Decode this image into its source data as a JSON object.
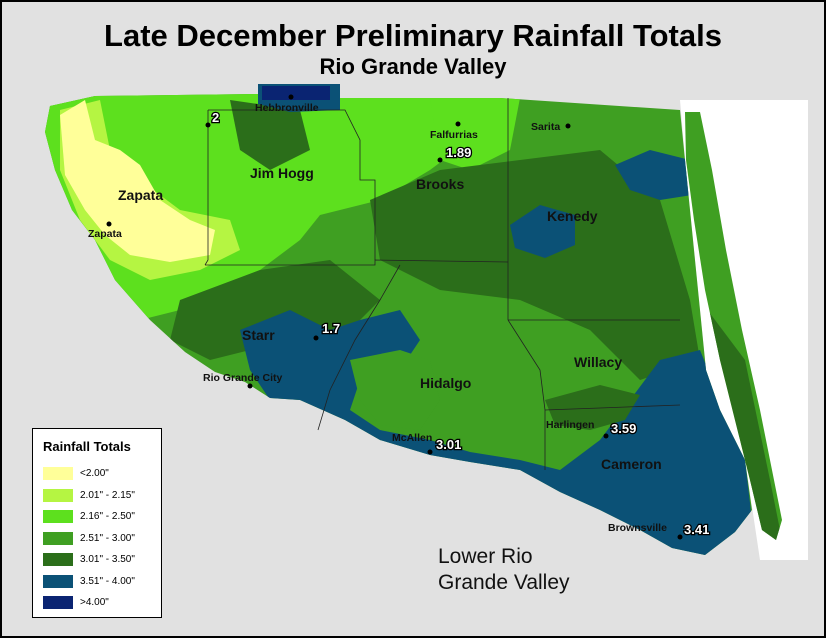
{
  "title": "Late December Preliminary Rainfall Totals",
  "subtitle": "Rio Grande Valley",
  "region_label": [
    "Lower Rio",
    "Grande Valley"
  ],
  "colors": {
    "lt2_00": "#ffff99",
    "r2_01_2_15": "#b5f542",
    "r2_16_2_50": "#5de01e",
    "r2_51_3_00": "#3f9f22",
    "r3_01_3_50": "#2b6e1a",
    "r3_51_4_00": "#0b5176",
    "gt4_00": "#0a2472",
    "background": "#e1e1e1",
    "gulf": "#ffffff"
  },
  "legend": {
    "title": "Rainfall Totals",
    "items": [
      {
        "label": "<2.00\"",
        "color": "#ffff99"
      },
      {
        "label": "2.01\" - 2.15\"",
        "color": "#b5f542"
      },
      {
        "label": "2.16\" - 2.50\"",
        "color": "#5de01e"
      },
      {
        "label": "2.51\" - 3.00\"",
        "color": "#3f9f22"
      },
      {
        "label": "3.01\" - 3.50\"",
        "color": "#2b6e1a"
      },
      {
        "label": "3.51\" - 4.00\"",
        "color": "#0b5176"
      },
      {
        "label": ">4.00\"",
        "color": "#0a2472"
      }
    ]
  },
  "counties": [
    "Zapata",
    "Jim Hogg",
    "Brooks",
    "Kenedy",
    "Starr",
    "Hidalgo",
    "Willacy",
    "Cameron"
  ],
  "cities": [
    "Hebbronville",
    "Falfurrias",
    "Sarita",
    "Zapata",
    "Rio Grande City",
    "McAllen",
    "Harlingen",
    "Brownsville"
  ],
  "rainfall_values": [
    "2",
    "1.89",
    "1.7",
    "3.01",
    "3.59",
    "3.41"
  ]
}
